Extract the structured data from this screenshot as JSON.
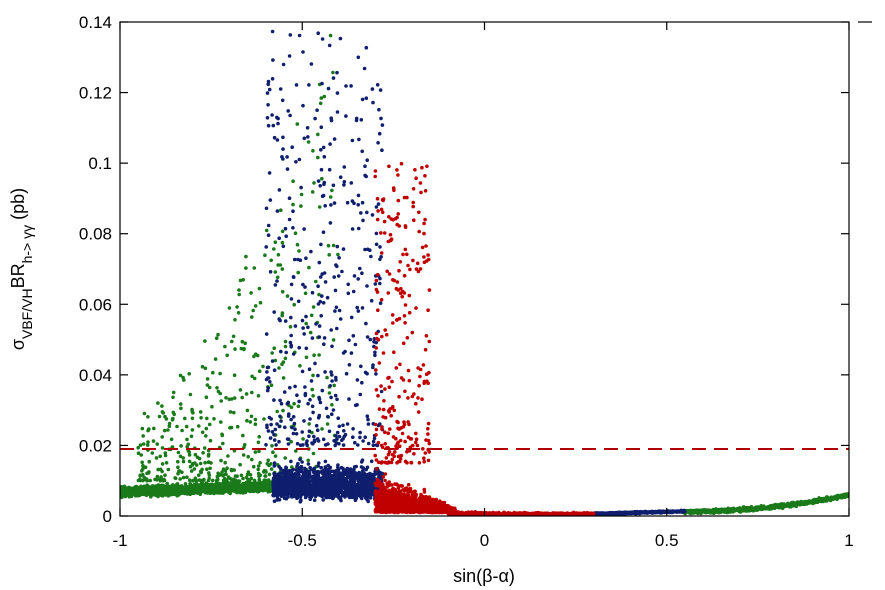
{
  "chart_data": {
    "type": "scatter",
    "title": "",
    "xlabel": "sin(β-α)",
    "ylabel": {
      "main": "σ",
      "sub1": "VBF/VH",
      "middle": "BR",
      "sub2": "h-> γγ",
      "unit": " (pb)"
    },
    "xlim": [
      -1,
      1
    ],
    "ylim": [
      0,
      0.14
    ],
    "x_ticks": [
      -1,
      -0.5,
      0,
      0.5,
      1
    ],
    "x_tick_labels": [
      "-1",
      "-0.5",
      "0",
      "0.5",
      "1"
    ],
    "y_ticks": [
      0,
      0.02,
      0.04,
      0.06,
      0.08,
      0.1,
      0.12,
      0.14
    ],
    "y_tick_labels": [
      "0",
      "0.02",
      "0.04",
      "0.06",
      "0.08",
      "0.1",
      "0.12",
      "0.14"
    ],
    "grid": false,
    "legend": "none",
    "reference_line": {
      "y": 0.019,
      "color": "#b00000",
      "style": "dashed"
    },
    "series": [
      {
        "color": "#1a7a1a",
        "description_points": [
          [
            -1.0,
            0.006
          ],
          [
            -0.98,
            0.007
          ],
          [
            -0.95,
            0.008
          ],
          [
            -0.92,
            0.009
          ],
          [
            -0.9,
            0.01
          ],
          [
            -0.88,
            0.011
          ],
          [
            -0.85,
            0.012
          ],
          [
            -0.82,
            0.013
          ],
          [
            -0.8,
            0.015
          ],
          [
            -0.78,
            0.016
          ],
          [
            -0.75,
            0.018
          ],
          [
            -0.72,
            0.02
          ],
          [
            -0.7,
            0.022
          ],
          [
            -0.68,
            0.025
          ],
          [
            -0.66,
            0.03
          ],
          [
            -0.65,
            0.138
          ],
          [
            -0.62,
            0.127
          ],
          [
            -0.6,
            0.095
          ],
          [
            -0.58,
            0.08
          ],
          [
            -0.55,
            0.07
          ],
          [
            -0.52,
            0.075
          ],
          [
            -0.5,
            0.06
          ],
          [
            -0.45,
            0.136
          ],
          [
            -0.42,
            0.13
          ],
          [
            -0.38,
            0.13
          ],
          [
            -0.35,
            0.125
          ],
          [
            0.55,
            0.002
          ],
          [
            0.7,
            0.003
          ],
          [
            0.85,
            0.004
          ],
          [
            1.0,
            0.006
          ]
        ]
      },
      {
        "color": "#0f1f6e",
        "description_points": [
          [
            -0.65,
            0.126
          ],
          [
            -0.6,
            0.12
          ],
          [
            -0.57,
            0.086
          ],
          [
            -0.55,
            0.08
          ],
          [
            -0.5,
            0.07
          ],
          [
            -0.47,
            0.065
          ],
          [
            -0.45,
            0.06
          ],
          [
            -0.42,
            0.09
          ],
          [
            -0.4,
            0.11
          ],
          [
            -0.38,
            0.133
          ],
          [
            -0.36,
            0.085
          ],
          [
            -0.34,
            0.09
          ],
          [
            -0.32,
            0.07
          ],
          [
            -0.3,
            0.05
          ],
          [
            -0.28,
            0.03
          ],
          [
            0.3,
            0.0008
          ],
          [
            0.4,
            0.001
          ],
          [
            0.5,
            0.0012
          ],
          [
            0.55,
            0.0015
          ]
        ]
      },
      {
        "color": "#c00000",
        "description_points": [
          [
            -0.28,
            0.095
          ],
          [
            -0.26,
            0.09
          ],
          [
            -0.24,
            0.08
          ],
          [
            -0.22,
            0.07
          ],
          [
            -0.2,
            0.08
          ],
          [
            -0.18,
            0.06
          ],
          [
            -0.16,
            0.045
          ],
          [
            -0.14,
            0.03
          ],
          [
            -0.12,
            0.02
          ],
          [
            -0.1,
            0.01
          ],
          [
            -0.05,
            0.002
          ],
          [
            0.0,
            0.0003
          ],
          [
            0.1,
            0.0005
          ],
          [
            0.2,
            0.0007
          ],
          [
            0.3,
            0.0008
          ]
        ]
      }
    ]
  }
}
